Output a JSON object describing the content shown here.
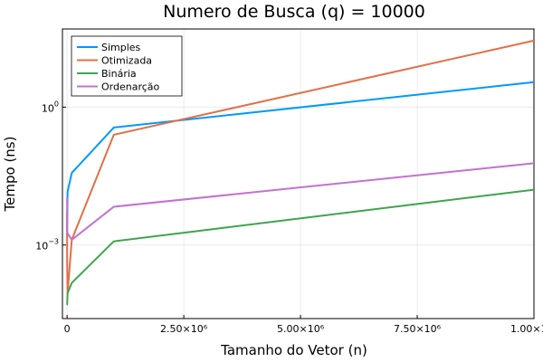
{
  "chart_data": {
    "type": "line",
    "title": "Numero de Busca (q) = 10000",
    "xlabel": "Tamanho do Vetor (n)",
    "ylabel": "Tempo (ns)",
    "xlim": [
      -100000,
      10000000
    ],
    "ylog10lim": [
      -4.6,
      1.7
    ],
    "yscale": "log10",
    "grid": true,
    "legend_position": "top-left",
    "xticks": [
      {
        "value": 0,
        "label": "0"
      },
      {
        "value": 2500000,
        "label": "2.50×10⁶"
      },
      {
        "value": 5000000,
        "label": "5.00×10⁶"
      },
      {
        "value": 7500000,
        "label": "7.50×10⁶"
      },
      {
        "value": 10000000,
        "label": "1.00×10⁷"
      }
    ],
    "yticks": [
      {
        "value": 1,
        "base": "10",
        "exp": "0"
      },
      {
        "value": 0.001,
        "base": "10",
        "exp": "−3"
      }
    ],
    "series": [
      {
        "name": "Simples",
        "color": "#009AFA",
        "x": [
          10,
          100,
          1000,
          10000,
          100000,
          1000000,
          10000000
        ],
        "y": [
          0.0045,
          0.0015,
          0.0027,
          0.0145,
          0.037,
          0.36,
          3.5
        ]
      },
      {
        "name": "Otimizada",
        "color": "#E36F47",
        "x": [
          10,
          100,
          1000,
          10000,
          100000,
          1000000,
          10000000
        ],
        "y": [
          0.0052,
          0.0009,
          0.0004,
          9e-05,
          0.0013,
          0.25,
          28
        ]
      },
      {
        "name": "Binária",
        "color": "#3EA44E",
        "x": [
          10,
          100,
          1000,
          10000,
          100000,
          1000000,
          10000000
        ],
        "y": [
          5e-05,
          5e-05,
          5e-05,
          9e-05,
          0.00015,
          0.0012,
          0.016
        ]
      },
      {
        "name": "Ordenarção",
        "color": "#C271D2",
        "x": [
          10,
          100,
          1000,
          10000,
          100000,
          1000000,
          10000000
        ],
        "y": [
          0.011,
          0.0045,
          0.0018,
          0.0018,
          0.0013,
          0.0068,
          0.06
        ]
      }
    ]
  }
}
